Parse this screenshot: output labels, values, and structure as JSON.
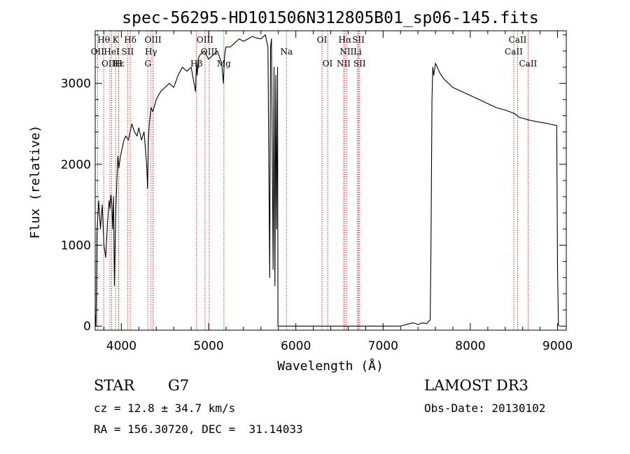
{
  "chart_data": {
    "type": "line",
    "title": "spec-56295-HD101506N312805B01_sp06-145.fits",
    "xlabel": "Wavelength (Å)",
    "ylabel": "Flux (relative)",
    "xlim": [
      3700,
      9100
    ],
    "ylim": [
      -50,
      3650
    ],
    "xticks": [
      4000,
      5000,
      6000,
      7000,
      8000,
      9000
    ],
    "yticks": [
      0,
      1000,
      2000,
      3000
    ],
    "series": [
      {
        "name": "spectrum",
        "x": [
          3700,
          3710,
          3720,
          3740,
          3760,
          3780,
          3800,
          3820,
          3840,
          3860,
          3870,
          3880,
          3890,
          3900,
          3910,
          3920,
          3935,
          3950,
          3960,
          3970,
          3990,
          4010,
          4030,
          4050,
          4080,
          4100,
          4120,
          4150,
          4180,
          4200,
          4230,
          4260,
          4290,
          4300,
          4310,
          4320,
          4340,
          4360,
          4400,
          4450,
          4500,
          4550,
          4600,
          4650,
          4700,
          4750,
          4800,
          4850,
          4860,
          4870,
          4880,
          4900,
          4950,
          5000,
          5050,
          5100,
          5150,
          5170,
          5180,
          5190,
          5200,
          5250,
          5300,
          5350,
          5400,
          5450,
          5500,
          5550,
          5600,
          5650,
          5680,
          5700,
          5710,
          5720,
          5740,
          5750,
          5760,
          5770,
          5780,
          5790,
          5795,
          5800,
          5900,
          6000,
          6500,
          7000,
          7100,
          7200,
          7250,
          7300,
          7350,
          7400,
          7450,
          7500,
          7540,
          7550,
          7560,
          7570,
          7580,
          7600,
          7650,
          7700,
          7800,
          7900,
          8000,
          8100,
          8200,
          8300,
          8400,
          8500,
          8540,
          8560,
          8600,
          8660,
          8700,
          8800,
          8900,
          8980,
          8990,
          9000,
          9010
        ],
        "y": [
          150,
          0,
          1150,
          1550,
          1200,
          1500,
          1000,
          850,
          1250,
          1550,
          1450,
          1620,
          1500,
          1200,
          1600,
          500,
          1400,
          1850,
          2100,
          1950,
          2100,
          2200,
          2300,
          2350,
          2300,
          2400,
          2500,
          2400,
          2350,
          2450,
          2300,
          2400,
          2000,
          1700,
          2300,
          2500,
          2700,
          2650,
          2800,
          2900,
          2950,
          3000,
          2950,
          3100,
          3200,
          3150,
          3200,
          2900,
          3250,
          3100,
          3300,
          3350,
          3400,
          3300,
          3350,
          3400,
          3250,
          3000,
          3300,
          3400,
          3450,
          3450,
          3500,
          3550,
          3520,
          3550,
          3580,
          3560,
          3550,
          3600,
          3450,
          600,
          3450,
          3550,
          700,
          3200,
          500,
          3100,
          1200,
          3200,
          0,
          0,
          0,
          0,
          0,
          0,
          0,
          0,
          15,
          30,
          40,
          20,
          40,
          30,
          80,
          1100,
          2800,
          3200,
          3100,
          3250,
          3130,
          3050,
          2950,
          2900,
          2850,
          2800,
          2750,
          2700,
          2670,
          2630,
          2600,
          2580,
          2570,
          2550,
          2540,
          2520,
          2500,
          2480,
          2480,
          700,
          0
        ]
      }
    ],
    "line_labels": [
      {
        "text": "Hθ",
        "wave": 3797,
        "row": 1
      },
      {
        "text": "OII",
        "wave": 3727,
        "row": 2
      },
      {
        "text": "OIII",
        "wave": 3869,
        "row": 3
      },
      {
        "text": "K",
        "wave": 3934,
        "row": 1
      },
      {
        "text": "HeI",
        "wave": 3889,
        "row": 2
      },
      {
        "text": "Hε",
        "wave": 3970,
        "row": 3
      },
      {
        "text": "Hδ",
        "wave": 4102,
        "row": 1
      },
      {
        "text": "SII",
        "wave": 4072,
        "row": 2
      },
      {
        "text": "H",
        "wave": 3969,
        "row": 3
      },
      {
        "text": "OIII",
        "wave": 4363,
        "row": 1
      },
      {
        "text": "Hγ",
        "wave": 4340,
        "row": 2
      },
      {
        "text": "G",
        "wave": 4304,
        "row": 3
      },
      {
        "text": "OIII",
        "wave": 4959,
        "row": 1
      },
      {
        "text": "OIII",
        "wave": 5007,
        "row": 2
      },
      {
        "text": "Hβ",
        "wave": 4861,
        "row": 3
      },
      {
        "text": "Mg",
        "wave": 5175,
        "row": 3
      },
      {
        "text": "Na",
        "wave": 5893,
        "row": 2
      },
      {
        "text": "OI",
        "wave": 6300,
        "row": 1
      },
      {
        "text": "OI",
        "wave": 6364,
        "row": 3
      },
      {
        "text": "Hα",
        "wave": 6563,
        "row": 1
      },
      {
        "text": "SII",
        "wave": 6717,
        "row": 1
      },
      {
        "text": "NII",
        "wave": 6583,
        "row": 2
      },
      {
        "text": "Li",
        "wave": 6708,
        "row": 2
      },
      {
        "text": "NII",
        "wave": 6548,
        "row": 3
      },
      {
        "text": "SII",
        "wave": 6731,
        "row": 3
      },
      {
        "text": "CaII",
        "wave": 8542,
        "row": 1
      },
      {
        "text": "CaII",
        "wave": 8498,
        "row": 2
      },
      {
        "text": "CaII",
        "wave": 8662,
        "row": 3
      }
    ],
    "vline_color": "#c00000"
  },
  "info": {
    "class": "STAR",
    "subclass": "G7",
    "survey": "LAMOST DR3",
    "cz": "cz = 12.8 ± 34.7 km/s",
    "obs_date": "Obs-Date: 20130102",
    "coords": "RA = 156.30720, DEC =  31.14033"
  }
}
